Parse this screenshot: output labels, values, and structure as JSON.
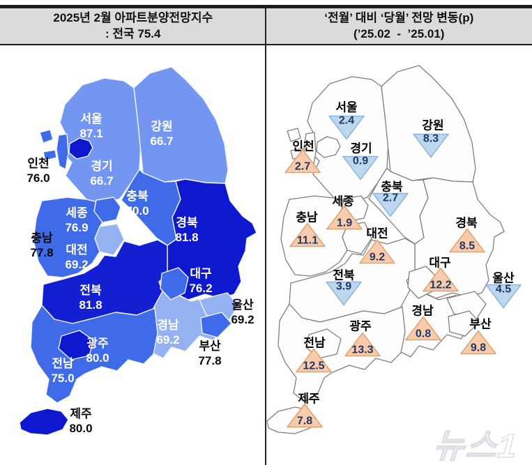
{
  "header": {
    "left_title": "2025년 2월 아파트분양전망지수",
    "left_subtitle": ": 전국 75.4",
    "right_title": "‘전월’ 대비 ‘당월’ 전망 변동(p)",
    "right_subtitle": "(’25.02  -  ’25.01)"
  },
  "watermark": "뉴스1",
  "colors": {
    "header_bg": "#dbdbdb",
    "border_black": "#1a1a1a",
    "map_navy": "#0e19cf",
    "map_royal": "#3f6ae8",
    "map_light": "#7397f1",
    "map_pale": "#94b1f2",
    "left_stroke": "#f0f4ff",
    "right_fill": "#fdfdfd",
    "right_stroke": "#7f7f7f",
    "up_triangle_fill": "#F8CBAD",
    "up_triangle_stroke": "#E2A26C",
    "down_triangle_fill": "#BDD7EE",
    "down_triangle_stroke": "#8EB4DC",
    "marker_value_text": "#1F3864"
  },
  "chart_data": {
    "type": "heatmap",
    "subtype": "choropleth_map_pair",
    "left_map_title": "2025년 2월 아파트분양전망지수 : 전국 75.4",
    "right_map_title": "‘전월’ 대비 ‘당월’ 전망 변동(p) (’25.02 - ’25.01)",
    "national_index": "75.4",
    "legend": {
      "up_means": "전월 대비 상승",
      "down_means": "전월 대비 하락"
    },
    "regions": [
      {
        "id": "seoul",
        "name": "서울",
        "index": "87.1",
        "change": "2.4",
        "direction": "down",
        "fill": "#0e19cf",
        "index_label_color": "white"
      },
      {
        "id": "incheon",
        "name": "인천",
        "index": "76.0",
        "change": "2.7",
        "direction": "up",
        "fill": "#3f6ae8",
        "index_label_color": "black"
      },
      {
        "id": "gyeonggi",
        "name": "경기",
        "index": "66.7",
        "change": "0.9",
        "direction": "down",
        "fill": "#7397f1",
        "index_label_color": "white"
      },
      {
        "id": "gangwon",
        "name": "강원",
        "index": "66.7",
        "change": "8.3",
        "direction": "down",
        "fill": "#7397f1",
        "index_label_color": "white"
      },
      {
        "id": "chungbuk",
        "name": "충북",
        "index": "70.0",
        "change": "2.7",
        "direction": "down",
        "fill": "#3f6ae8",
        "index_label_color": "white"
      },
      {
        "id": "sejong",
        "name": "세종",
        "index": "76.9",
        "change": "1.9",
        "direction": "up",
        "fill": "#3f6ae8",
        "index_label_color": "white"
      },
      {
        "id": "chungnam",
        "name": "충남",
        "index": "77.8",
        "change": "11.1",
        "direction": "up",
        "fill": "#3f6ae8",
        "index_label_color": "black"
      },
      {
        "id": "daejeon",
        "name": "대전",
        "index": "69.2",
        "change": "9.2",
        "direction": "up",
        "fill": "#94b1f2",
        "index_label_color": "white"
      },
      {
        "id": "gyeongbuk",
        "name": "경북",
        "index": "81.8",
        "change": "8.5",
        "direction": "up",
        "fill": "#0e19cf",
        "index_label_color": "white"
      },
      {
        "id": "daegu",
        "name": "대구",
        "index": "76.2",
        "change": "12.2",
        "direction": "up",
        "fill": "#3f6ae8",
        "index_label_color": "white"
      },
      {
        "id": "jeonbuk",
        "name": "전북",
        "index": "81.8",
        "change": "3.9",
        "direction": "down",
        "fill": "#1220d2",
        "index_label_color": "white"
      },
      {
        "id": "ulsan",
        "name": "울산",
        "index": "69.2",
        "change": "4.5",
        "direction": "down",
        "fill": "#94b1f2",
        "index_label_color": "black"
      },
      {
        "id": "gyeongnam",
        "name": "경남",
        "index": "69.2",
        "change": "0.8",
        "direction": "up",
        "fill": "#94b1f2",
        "index_label_color": "white"
      },
      {
        "id": "gwangju",
        "name": "광주",
        "index": "80.0",
        "change": "13.3",
        "direction": "up",
        "fill": "#0e19cf",
        "index_label_color": "white"
      },
      {
        "id": "busan",
        "name": "부산",
        "index": "77.8",
        "change": "9.8",
        "direction": "up",
        "fill": "#3f6ae8",
        "index_label_color": "black"
      },
      {
        "id": "jeonnam",
        "name": "전남",
        "index": "75.0",
        "change": "12.5",
        "direction": "up",
        "fill": "#3f6ae8",
        "index_label_color": "white"
      },
      {
        "id": "jeju",
        "name": "제주",
        "index": "80.0",
        "change": "7.8",
        "direction": "up",
        "fill": "#0e19cf",
        "index_label_color": "black"
      }
    ]
  }
}
